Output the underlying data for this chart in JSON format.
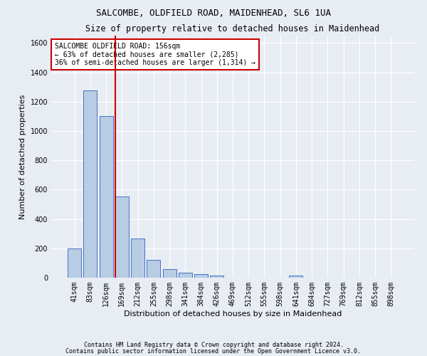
{
  "title": "SALCOMBE, OLDFIELD ROAD, MAIDENHEAD, SL6 1UA",
  "subtitle": "Size of property relative to detached houses in Maidenhead",
  "xlabel": "Distribution of detached houses by size in Maidenhead",
  "ylabel": "Number of detached properties",
  "footnote1": "Contains HM Land Registry data © Crown copyright and database right 2024.",
  "footnote2": "Contains public sector information licensed under the Open Government Licence v3.0.",
  "annotation_line1": "SALCOMBE OLDFIELD ROAD: 156sqm",
  "annotation_line2": "← 63% of detached houses are smaller (2,285)",
  "annotation_line3": "36% of semi-detached houses are larger (1,314) →",
  "bar_color": "#b8cce4",
  "bar_edge_color": "#4472c4",
  "vline_color": "#cc0000",
  "vline_x": 2.57,
  "categories": [
    "41sqm",
    "83sqm",
    "126sqm",
    "169sqm",
    "212sqm",
    "255sqm",
    "298sqm",
    "341sqm",
    "384sqm",
    "426sqm",
    "469sqm",
    "512sqm",
    "555sqm",
    "598sqm",
    "641sqm",
    "684sqm",
    "727sqm",
    "769sqm",
    "812sqm",
    "855sqm",
    "898sqm"
  ],
  "values": [
    197,
    1275,
    1100,
    555,
    265,
    120,
    58,
    32,
    22,
    14,
    0,
    0,
    0,
    0,
    14,
    0,
    0,
    0,
    0,
    0,
    0
  ],
  "ylim": [
    0,
    1650
  ],
  "yticks": [
    0,
    200,
    400,
    600,
    800,
    1000,
    1200,
    1400,
    1600
  ],
  "background_color": "#e8edf4",
  "plot_bg_color": "#e8edf4",
  "grid_color": "#ffffff",
  "title_fontsize": 9,
  "subtitle_fontsize": 8.5,
  "axis_label_fontsize": 8,
  "tick_fontsize": 7,
  "annotation_fontsize": 7,
  "footnote_fontsize": 6
}
